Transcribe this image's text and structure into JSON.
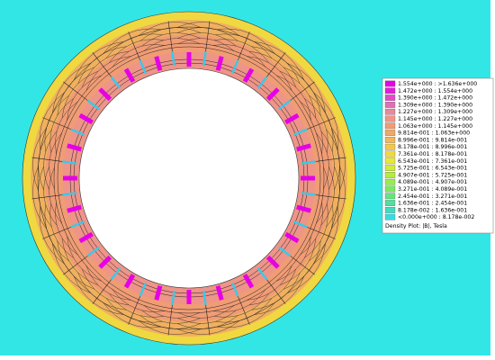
{
  "legend": {
    "entries": [
      {
        "label": "1.554e+000 : >1.636e+000",
        "color": "#e600e6"
      },
      {
        "label": "1.472e+000 : 1.554e+000",
        "color": "#e020d8"
      },
      {
        "label": "1.390e+000 : 1.472e+000",
        "color": "#e04cc8"
      },
      {
        "label": "1.309e+000 : 1.390e+000",
        "color": "#e070b4"
      },
      {
        "label": "1.227e+000 : 1.309e+000",
        "color": "#e8889c"
      },
      {
        "label": "1.145e+000 : 1.227e+000",
        "color": "#ee9488"
      },
      {
        "label": "1.063e+000 : 1.145e+000",
        "color": "#f09c74"
      },
      {
        "label": "9.814e-001 : 1.063e+000",
        "color": "#f0a864"
      },
      {
        "label": "8.996e-001 : 9.814e-001",
        "color": "#f0b858"
      },
      {
        "label": "8.178e-001 : 8.996e-001",
        "color": "#f0c84c"
      },
      {
        "label": "7.361e-001 : 8.178e-001",
        "color": "#f0d840"
      },
      {
        "label": "6.543e-001 : 7.361e-001",
        "color": "#e8e838"
      },
      {
        "label": "5.725e-001 : 6.543e-001",
        "color": "#d0ec38"
      },
      {
        "label": "4.907e-001 : 5.725e-001",
        "color": "#b4ec40"
      },
      {
        "label": "4.089e-001 : 4.907e-001",
        "color": "#98ec50"
      },
      {
        "label": "3.271e-001 : 4.089e-001",
        "color": "#7ce864"
      },
      {
        "label": "2.454e-001 : 3.271e-001",
        "color": "#64e480"
      },
      {
        "label": "1.636e-001 : 2.454e-001",
        "color": "#50e0a0"
      },
      {
        "label": "8.178e-002 : 1.636e-001",
        "color": "#40dcc0"
      },
      {
        "label": "<0.000e+000 : 8.178e-002",
        "color": "#38dce0"
      }
    ],
    "caption": "Density Plot: |B|, Tesla"
  }
}
